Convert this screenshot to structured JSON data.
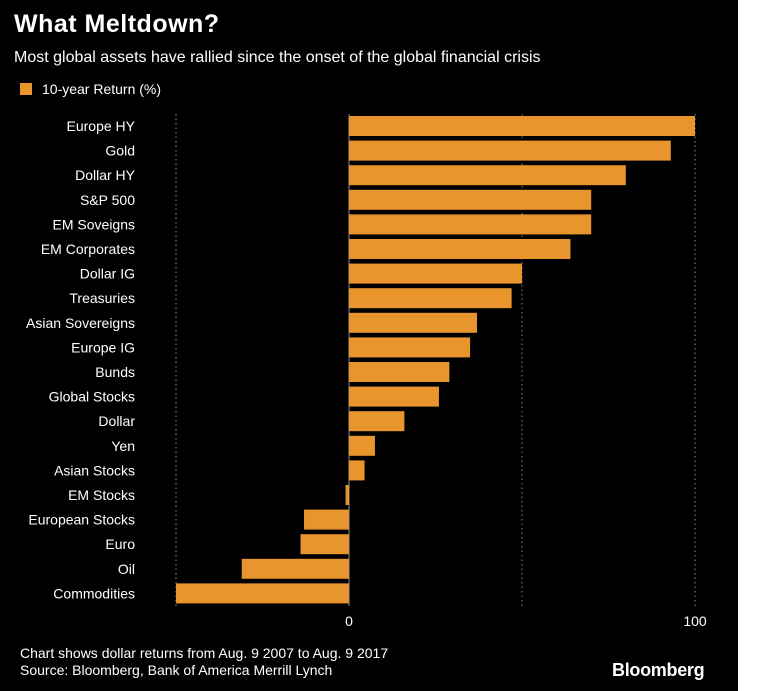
{
  "title": "What Meltdown?",
  "subtitle": "Most global assets have rallied since the onset of the global financial crisis",
  "footnote": {
    "line1": "Chart shows dollar returns from Aug. 9 2007 to Aug. 9 2017",
    "line2": "Source: Bloomberg, Bank of America Merrill Lynch"
  },
  "brand": "Bloomberg",
  "colors": {
    "bar": "#e8952e",
    "background": "#000000",
    "text": "#ffffff",
    "grid": "#8a8a8a"
  },
  "chart_data": {
    "type": "bar",
    "orientation": "horizontal",
    "title": "What Meltdown?",
    "subtitle": "Most global assets have rallied since the onset of the global financial crisis",
    "legend": [
      "10-year Return (%)"
    ],
    "legend_position": "top-left",
    "categories": [
      "Europe HY",
      "Gold",
      "Dollar HY",
      "S&P 500",
      "EM Soveigns",
      "EM Corporates",
      "Dollar IG",
      "Treasuries",
      "Asian Sovereigns",
      "Europe IG",
      "Bunds",
      "Global Stocks",
      "Dollar",
      "Yen",
      "Asian Stocks",
      "EM Stocks",
      "European Stocks",
      "Euro",
      "Oil",
      "Commodities"
    ],
    "series": [
      {
        "name": "10-year Return (%)",
        "values": [
          100,
          93,
          80,
          70,
          70,
          64,
          50,
          47,
          37,
          35,
          29,
          26,
          16,
          7.5,
          4.5,
          -1,
          -13,
          -14,
          -31,
          -50
        ]
      }
    ],
    "xlim": [
      -50,
      100
    ],
    "xticks": [
      0,
      100
    ],
    "xtick_labels": [
      "0",
      "100"
    ],
    "gridlines": [
      -50,
      0,
      50,
      100
    ],
    "grid": true
  }
}
